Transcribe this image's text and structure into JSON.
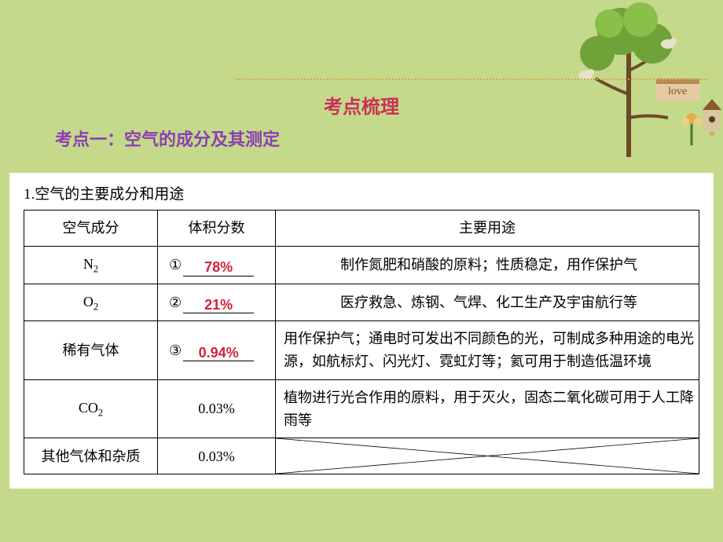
{
  "headings": {
    "main": "考点梳理",
    "sub": "考点一：空气的成分及其测定",
    "section": "1.空气的主要成分和用途"
  },
  "table": {
    "headers": {
      "component": "空气成分",
      "fraction": "体积分数",
      "use": "主要用途"
    },
    "rows": [
      {
        "component_html": "N<span class=\"sub\">2</span>",
        "fraction_label": "①",
        "answer": "78%",
        "use": "制作氮肥和硝酸的原料；性质稳定，用作保护气"
      },
      {
        "component_html": "O<span class=\"sub\">2</span>",
        "fraction_label": "②",
        "answer": "21%",
        "use": "医疗救急、炼钢、气焊、化工生产及宇宙航行等"
      },
      {
        "component_html": "稀有气体",
        "fraction_label": "③",
        "answer": "0.94%",
        "use": "用作保护气；通电时可发出不同颜色的光，可制成多种用途的电光源，如航标灯、闪光灯、霓虹灯等；氦可用于制造低温环境"
      },
      {
        "component_html": "CO<span class=\"sub\">2</span>",
        "fraction_plain": "0.03%",
        "use": "植物进行光合作用的原料，用于灭火，固态二氧化碳可用于人工降雨等"
      },
      {
        "component_html": "其他气体和杂质",
        "fraction_plain": "0.03%",
        "use_diagonal": true
      }
    ]
  },
  "decor": {
    "love_label": "love"
  },
  "style": {
    "bg": "#c5d98a",
    "title_color": "#c9305a",
    "sub_color": "#8a3fb5",
    "answer_color": "#d4213a",
    "dotted_color": "#d6a94a"
  }
}
